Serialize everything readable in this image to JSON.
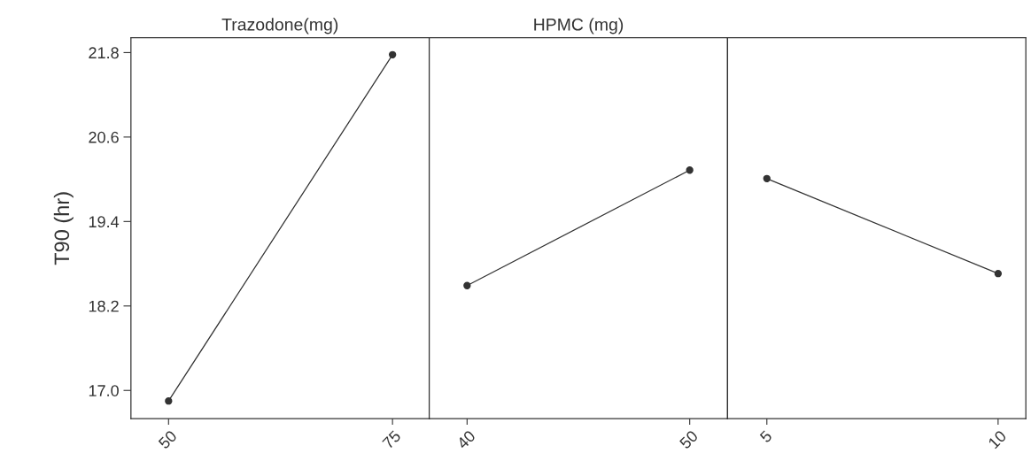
{
  "chart_data": [
    {
      "type": "line",
      "title": "Trazodone(mg)",
      "ylabel": "T90 (hr)",
      "x": [
        50,
        75
      ],
      "series": [
        {
          "color": "#333333",
          "values": [
            16.85,
            21.77
          ]
        }
      ],
      "xlim": [
        45.8,
        79.1
      ],
      "xticks": [
        50,
        75
      ],
      "ylim": [
        16.6,
        22.01
      ],
      "yticks": [
        {
          "value": 17,
          "label": "17.0"
        },
        18.2,
        19.4,
        20.6,
        21.8
      ],
      "marker": "circle",
      "grid": false,
      "legend": false
    },
    {
      "type": "line",
      "title": "HPMC (mg)",
      "x": [
        40,
        50
      ],
      "series": [
        {
          "color": "#333333",
          "values": [
            18.49,
            20.13
          ]
        }
      ],
      "xlim": [
        38.3,
        51.7
      ],
      "xticks": [
        40,
        50
      ],
      "ylim": [
        16.6,
        22.01
      ],
      "tick_labels": "x",
      "marker": "circle",
      "grid": false,
      "legend": false
    },
    {
      "type": "line",
      "x": [
        5,
        10
      ],
      "series": [
        {
          "color": "#333333",
          "values": [
            20.01,
            18.66
          ]
        }
      ],
      "xlim": [
        4.15,
        10.6
      ],
      "xticks": [
        5,
        10
      ],
      "ylim": [
        16.6,
        22.01
      ],
      "tick_labels": "x",
      "marker": "circle",
      "grid": false,
      "legend": false
    }
  ]
}
